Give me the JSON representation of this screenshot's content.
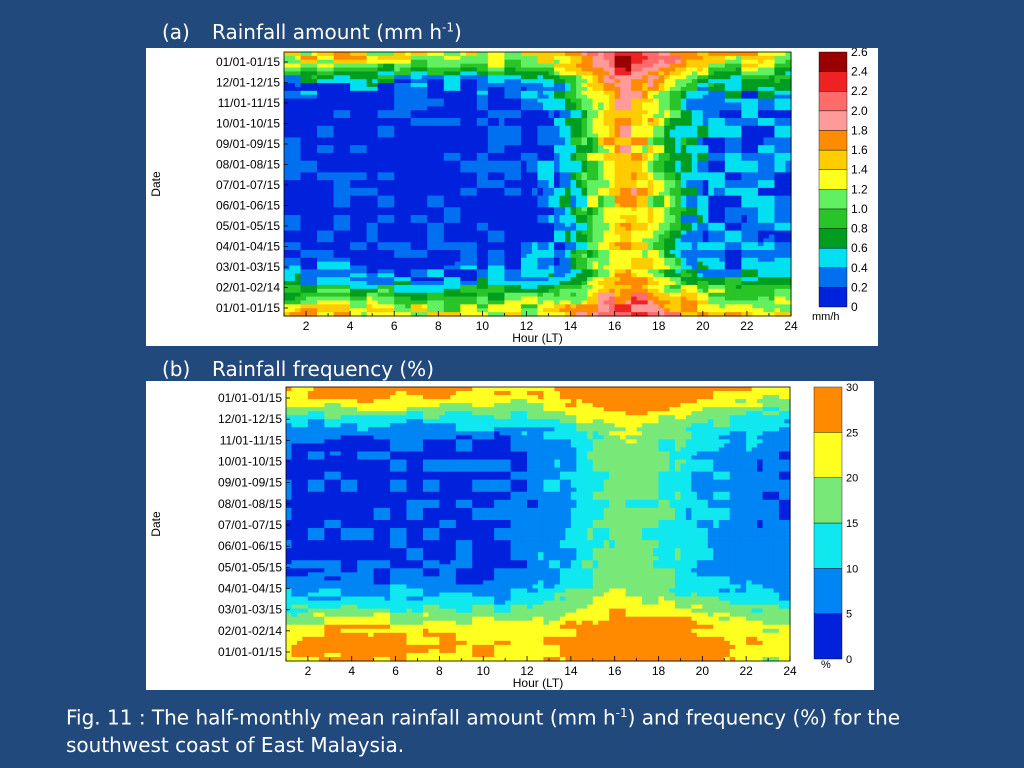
{
  "caption": {
    "part1": "Fig. 11 : The half-monthly mean rainfall amount (mm h",
    "sup": "-1",
    "part2": ") and frequency (%) for the southwest coast of East Malaysia."
  },
  "chart_data": [
    {
      "type": "heatmap",
      "panel_label": "(a)",
      "title": "Rainfall amount (mm h",
      "title_sup": "-1",
      "title_end": ")",
      "xlabel": "Hour (LT)",
      "ylabel": "Date",
      "x_ticks": [
        2,
        4,
        6,
        8,
        10,
        12,
        14,
        16,
        18,
        20,
        22,
        24
      ],
      "xlim": [
        1,
        24
      ],
      "y_categories": [
        "01/01-01/15",
        "02/01-02/14",
        "03/01-03/15",
        "04/01-04/15",
        "05/01-05/15",
        "06/01-06/15",
        "07/01-07/15",
        "08/01-08/15",
        "09/01-09/15",
        "10/01-10/15",
        "11/01-11/15",
        "12/01-12/15",
        "01/01-01/15"
      ],
      "colorbar": {
        "unit": "mm/h",
        "levels": [
          0,
          0.2,
          0.4,
          0.6,
          0.8,
          1.0,
          1.2,
          1.4,
          1.6,
          1.8,
          2.0,
          2.2,
          2.4,
          2.6
        ],
        "labels": [
          "0",
          "0.2",
          "0.4",
          "0.6",
          "0.8",
          "1.0",
          "1.2",
          "1.4",
          "1.6",
          "1.8",
          "2.0",
          "2.2",
          "2.4",
          "2.6"
        ],
        "colors": [
          "#0022dd",
          "#0070f0",
          "#00e0f0",
          "#009e20",
          "#28c428",
          "#60f060",
          "#ffff20",
          "#ffcc00",
          "#ff8c00",
          "#ff9a9a",
          "#ff6a6a",
          "#ee2222",
          "#990000"
        ]
      }
    },
    {
      "type": "heatmap",
      "panel_label": "(b)",
      "title": "Rainfall frequency (%)",
      "xlabel": "Hour (LT)",
      "ylabel": "Date",
      "x_ticks": [
        2,
        4,
        6,
        8,
        10,
        12,
        14,
        16,
        18,
        20,
        22,
        24
      ],
      "xlim": [
        1,
        24
      ],
      "y_categories": [
        "01/01-01/15",
        "02/01-02/14",
        "03/01-03/15",
        "04/01-04/15",
        "05/01-05/15",
        "06/01-06/15",
        "07/01-07/15",
        "08/01-08/15",
        "09/01-09/15",
        "10/01-10/15",
        "11/01-11/15",
        "12/01-12/15",
        "01/01-01/15"
      ],
      "colorbar": {
        "unit": "%",
        "levels": [
          0,
          5,
          10,
          15,
          20,
          25,
          30
        ],
        "labels": [
          "0",
          "5",
          "10",
          "15",
          "20",
          "25",
          "30"
        ],
        "colors": [
          "#0022dd",
          "#0085f5",
          "#10e8f0",
          "#78e878",
          "#ffff20",
          "#ff8a00"
        ]
      }
    }
  ]
}
